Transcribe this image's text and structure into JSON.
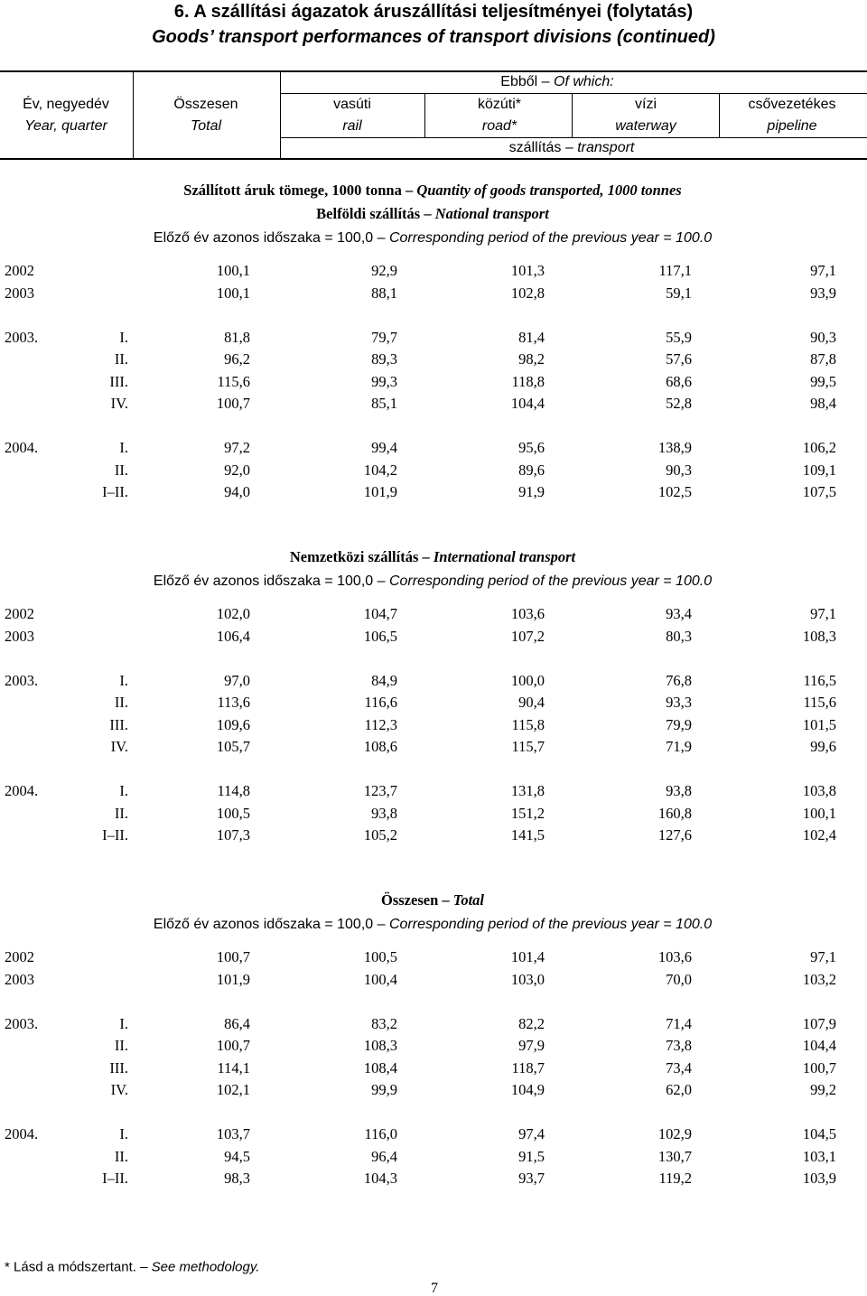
{
  "title": {
    "hu": "6. A szállítási ágazatok áruszállítási teljesítményei (folytatás)",
    "en": "Goods’ transport performances of transport divisions (continued)"
  },
  "header": {
    "year_hu": "Év, negyedév",
    "year_en": "Year, quarter",
    "total_hu": "Összesen",
    "total_en": "Total",
    "of_which_hu": "Ebből –",
    "of_which_en": "Of which:",
    "columns": [
      {
        "hu": "vasúti",
        "en": "rail"
      },
      {
        "hu": "közúti*",
        "en": "road*"
      },
      {
        "hu": "vízi",
        "en": "waterway"
      },
      {
        "hu": "csővezetékes",
        "en": "pipeline"
      }
    ],
    "transport_hu": "szállítás –",
    "transport_en": "transport"
  },
  "subtitle": {
    "hu": "Szállított áruk tömege, 1000 tonna –",
    "en": "Quantity of goods transported, 1000 tonnes"
  },
  "sections": [
    {
      "title_hu": "Belföldi szállítás –",
      "title_en": "National transport",
      "index_hu": "Előző év azonos időszaka = 100,0 –",
      "index_en": "Corresponding period of the previous year = 100.0",
      "groups": [
        [
          {
            "year": "2002",
            "values": [
              "100,1",
              "92,9",
              "101,3",
              "117,1",
              "97,1"
            ]
          },
          {
            "year": "2003",
            "values": [
              "100,1",
              "88,1",
              "102,8",
              "59,1",
              "93,9"
            ]
          }
        ],
        [
          {
            "year": "2003.",
            "quarter": "I.",
            "values": [
              "81,8",
              "79,7",
              "81,4",
              "55,9",
              "90,3"
            ]
          },
          {
            "quarter": "II.",
            "values": [
              "96,2",
              "89,3",
              "98,2",
              "57,6",
              "87,8"
            ]
          },
          {
            "quarter": "III.",
            "values": [
              "115,6",
              "99,3",
              "118,8",
              "68,6",
              "99,5"
            ]
          },
          {
            "quarter": "IV.",
            "values": [
              "100,7",
              "85,1",
              "104,4",
              "52,8",
              "98,4"
            ]
          }
        ],
        [
          {
            "year": "2004.",
            "quarter": "I.",
            "values": [
              "97,2",
              "99,4",
              "95,6",
              "138,9",
              "106,2"
            ]
          },
          {
            "quarter": "II.",
            "values": [
              "92,0",
              "104,2",
              "89,6",
              "90,3",
              "109,1"
            ]
          },
          {
            "quarter": "I–II.",
            "values": [
              "94,0",
              "101,9",
              "91,9",
              "102,5",
              "107,5"
            ]
          }
        ]
      ]
    },
    {
      "title_hu": "Nemzetközi szállítás –",
      "title_en": "International transport",
      "index_hu": "Előző év azonos időszaka = 100,0 –",
      "index_en": "Corresponding period of the previous year = 100.0",
      "groups": [
        [
          {
            "year": "2002",
            "values": [
              "102,0",
              "104,7",
              "103,6",
              "93,4",
              "97,1"
            ]
          },
          {
            "year": "2003",
            "values": [
              "106,4",
              "106,5",
              "107,2",
              "80,3",
              "108,3"
            ]
          }
        ],
        [
          {
            "year": "2003.",
            "quarter": "I.",
            "values": [
              "97,0",
              "84,9",
              "100,0",
              "76,8",
              "116,5"
            ]
          },
          {
            "quarter": "II.",
            "values": [
              "113,6",
              "116,6",
              "90,4",
              "93,3",
              "115,6"
            ]
          },
          {
            "quarter": "III.",
            "values": [
              "109,6",
              "112,3",
              "115,8",
              "79,9",
              "101,5"
            ]
          },
          {
            "quarter": "IV.",
            "values": [
              "105,7",
              "108,6",
              "115,7",
              "71,9",
              "99,6"
            ]
          }
        ],
        [
          {
            "year": "2004.",
            "quarter": "I.",
            "values": [
              "114,8",
              "123,7",
              "131,8",
              "93,8",
              "103,8"
            ]
          },
          {
            "quarter": "II.",
            "values": [
              "100,5",
              "93,8",
              "151,2",
              "160,8",
              "100,1"
            ]
          },
          {
            "quarter": "I–II.",
            "values": [
              "107,3",
              "105,2",
              "141,5",
              "127,6",
              "102,4"
            ]
          }
        ]
      ]
    },
    {
      "title_hu": "Összesen –",
      "title_en": "Total",
      "index_hu": "Előző év azonos időszaka = 100,0 –",
      "index_en": "Corresponding period of the previous year = 100.0",
      "groups": [
        [
          {
            "year": "2002",
            "values": [
              "100,7",
              "100,5",
              "101,4",
              "103,6",
              "97,1"
            ]
          },
          {
            "year": "2003",
            "values": [
              "101,9",
              "100,4",
              "103,0",
              "70,0",
              "103,2"
            ]
          }
        ],
        [
          {
            "year": "2003.",
            "quarter": "I.",
            "values": [
              "86,4",
              "83,2",
              "82,2",
              "71,4",
              "107,9"
            ]
          },
          {
            "quarter": "II.",
            "values": [
              "100,7",
              "108,3",
              "97,9",
              "73,8",
              "104,4"
            ]
          },
          {
            "quarter": "III.",
            "values": [
              "114,1",
              "108,4",
              "118,7",
              "73,4",
              "100,7"
            ]
          },
          {
            "quarter": "IV.",
            "values": [
              "102,1",
              "99,9",
              "104,9",
              "62,0",
              "99,2"
            ]
          }
        ],
        [
          {
            "year": "2004.",
            "quarter": "I.",
            "values": [
              "103,7",
              "116,0",
              "97,4",
              "102,9",
              "104,5"
            ]
          },
          {
            "quarter": "II.",
            "values": [
              "94,5",
              "96,4",
              "91,5",
              "130,7",
              "103,1"
            ]
          },
          {
            "quarter": "I–II.",
            "values": [
              "98,3",
              "104,3",
              "93,7",
              "119,2",
              "103,9"
            ]
          }
        ]
      ]
    }
  ],
  "footnote": {
    "hu": "* Lásd a módszertant. –",
    "en": "See methodology."
  },
  "page_number": "7"
}
